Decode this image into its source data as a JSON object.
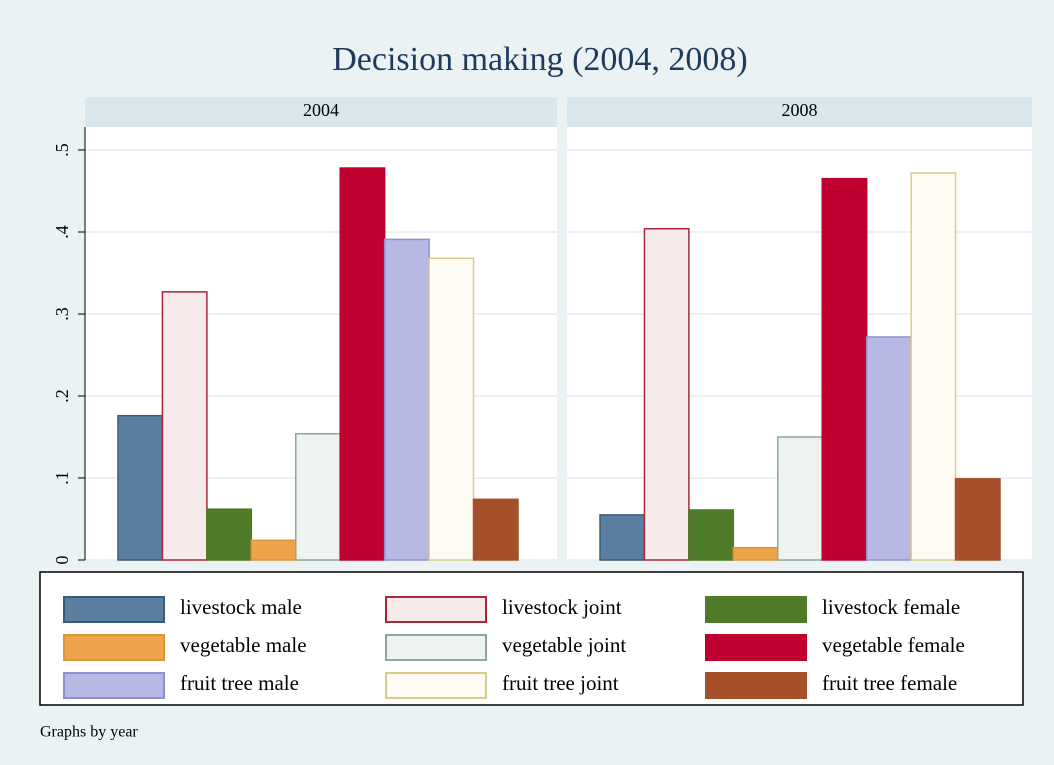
{
  "chart_data": {
    "type": "bar",
    "title": "Decision making (2004, 2008)",
    "note": "Graphs by year",
    "categories": [
      "2004",
      "2008"
    ],
    "series": [
      {
        "name": "livestock male",
        "color": "#5b7fa0",
        "stroke": "#3c5a78",
        "values": [
          0.176,
          0.055
        ]
      },
      {
        "name": "livestock joint",
        "color": "#f7eaea",
        "stroke": "#a8283a",
        "values": [
          0.327,
          0.404
        ]
      },
      {
        "name": "livestock female",
        "color": "#4f7a2a",
        "stroke": "#4f7a2a",
        "values": [
          0.062,
          0.061
        ]
      },
      {
        "name": "vegetable male",
        "color": "#f0a44a",
        "stroke": "#e0943a",
        "values": [
          0.024,
          0.015
        ]
      },
      {
        "name": "vegetable joint",
        "color": "#eef3f0",
        "stroke": "#8fa59a",
        "values": [
          0.154,
          0.15
        ]
      },
      {
        "name": "vegetable female",
        "color": "#c0002f",
        "stroke": "#c0002f",
        "values": [
          0.478,
          0.465
        ]
      },
      {
        "name": "fruit tree male",
        "color": "#b8b8e4",
        "stroke": "#9090d0",
        "values": [
          0.391,
          0.272
        ]
      },
      {
        "name": "fruit tree joint",
        "color": "#fdfbf2",
        "stroke": "#d9cc8a",
        "values": [
          0.368,
          0.472
        ]
      },
      {
        "name": "fruit tree female",
        "color": "#a5502a",
        "stroke": "#a5502a",
        "values": [
          0.074,
          0.099
        ]
      }
    ],
    "ylim": [
      0,
      0.5
    ],
    "yticks": [
      0,
      {
        "value": 0.1,
        "label": ".1"
      },
      {
        "value": 0.2,
        "label": ".2"
      },
      {
        "value": 0.3,
        "label": ".3"
      },
      {
        "value": 0.4,
        "label": ".4"
      },
      {
        "value": 0.5,
        "label": ".5"
      }
    ],
    "grid": true
  }
}
